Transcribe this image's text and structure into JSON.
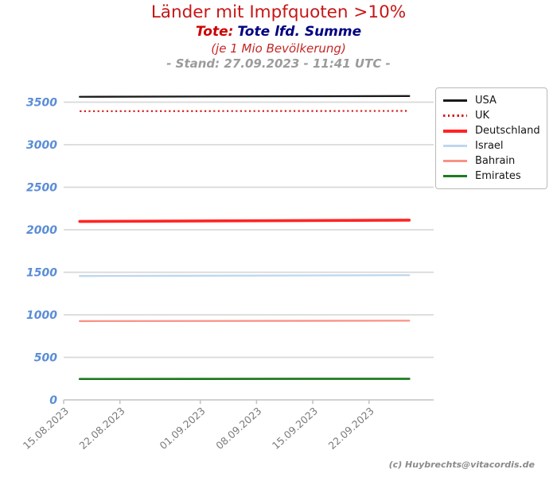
{
  "header": {
    "title": "Länder mit Impfquoten >10%",
    "subtitle_prefix": "Tote:",
    "subtitle_main": "Tote lfd. Summe",
    "note": "(je 1 Mio Bevölkerung)",
    "stand": "- Stand: 27.09.2023 - 11:41 UTC -"
  },
  "footer": {
    "credit": "(c) Huybrechts@vitacordis.de"
  },
  "colors": {
    "title": "#c81616",
    "subtitle_prefix": "#cc0000",
    "subtitle_main": "#000080",
    "note": "#c62626",
    "stand": "#9b9b9b",
    "axis_label": "#5b8dd6",
    "x_label": "#7a7a7a",
    "grid": "#d9d9d9",
    "axis": "#c4c4c4",
    "legend_border": "#b9b9b9",
    "footer": "#8a8a8a"
  },
  "chart_data": {
    "type": "line",
    "title": "Länder mit Impfquoten >10%",
    "subtitle": "Tote: Tote lfd. Summe (je 1 Mio Bevölkerung)",
    "timestamp": "Stand: 27.09.2023 - 11:41 UTC",
    "xlabel": "",
    "ylabel": "",
    "grid": true,
    "legend_position": "upper right outside",
    "x_ticks": [
      "15.08.2023",
      "22.08.2023",
      "01.09.2023",
      "08.09.2023",
      "15.09.2023",
      "22.09.2023"
    ],
    "x_axis_range": [
      "15.08.2023",
      "30.09.2023"
    ],
    "y_ticks": [
      0,
      500,
      1000,
      1500,
      2000,
      2500,
      3000,
      3500
    ],
    "ylim": [
      0,
      3670
    ],
    "series": [
      {
        "name": "USA",
        "color": "#1a1a1a",
        "dash": "solid",
        "width": 2.3,
        "points": [
          {
            "date": "17.08.2023",
            "value": 3563
          },
          {
            "date": "27.09.2023",
            "value": 3572
          }
        ]
      },
      {
        "name": "UK",
        "color": "#d41c1c",
        "dash": "dotted",
        "width": 2.2,
        "points": [
          {
            "date": "17.08.2023",
            "value": 3394
          },
          {
            "date": "27.09.2023",
            "value": 3397
          }
        ]
      },
      {
        "name": "Deutschland",
        "color": "#ff2424",
        "dash": "solid",
        "width": 3.6,
        "points": [
          {
            "date": "17.08.2023",
            "value": 2098
          },
          {
            "date": "27.09.2023",
            "value": 2113
          }
        ]
      },
      {
        "name": "Israel",
        "color": "#bdd7ee",
        "dash": "solid",
        "width": 2.3,
        "points": [
          {
            "date": "17.08.2023",
            "value": 1456
          },
          {
            "date": "27.09.2023",
            "value": 1466
          }
        ]
      },
      {
        "name": "Bahrain",
        "color": "#fa9185",
        "dash": "solid",
        "width": 2.3,
        "points": [
          {
            "date": "17.08.2023",
            "value": 926
          },
          {
            "date": "27.09.2023",
            "value": 931
          }
        ]
      },
      {
        "name": "Emirates",
        "color": "#1f7a1f",
        "dash": "solid",
        "width": 2.7,
        "points": [
          {
            "date": "17.08.2023",
            "value": 246
          },
          {
            "date": "27.09.2023",
            "value": 248
          }
        ]
      }
    ]
  }
}
